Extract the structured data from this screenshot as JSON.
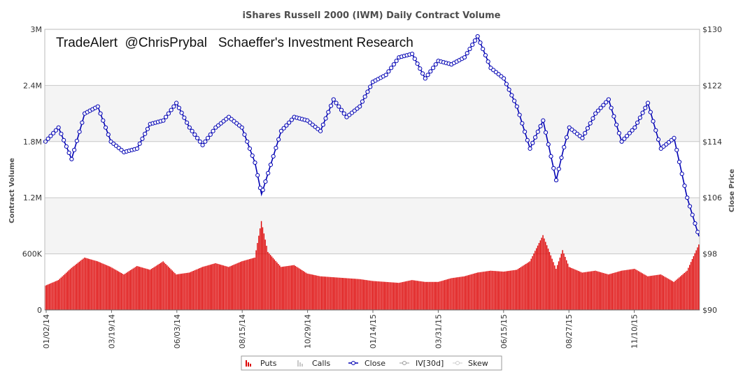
{
  "chart_data": {
    "type": "bar+line",
    "title": "iShares Russell 2000 (IWM) Daily Contract Volume",
    "watermark": "TradeAlert  @ChrisPrybal   Schaeffer's Investment Research",
    "ylabel_left": "Contract Volume",
    "ylabel_right": "Close Price",
    "ylim_left": [
      0,
      3000000
    ],
    "ylim_right": [
      90,
      130
    ],
    "y_ticks_left": [
      "0",
      "600K",
      "1.2M",
      "1.8M",
      "2.4M",
      "3M"
    ],
    "y_ticks_right": [
      "$90",
      "$98",
      "$106",
      "$114",
      "$122",
      "$130"
    ],
    "x_ticks": [
      "01/02/14",
      "03/19/14",
      "06/03/14",
      "08/15/14",
      "10/29/14",
      "01/14/15",
      "03/31/15",
      "06/15/15",
      "08/27/15",
      "11/10/15"
    ],
    "legend": [
      "Puts",
      "Calls",
      "Close",
      "IV[30d]",
      "Skew"
    ],
    "grid": true,
    "colors": {
      "puts": "#dd0000",
      "calls": "#c8c8c8",
      "close": "#0000b3",
      "band": "#f4f4f4",
      "grid": "#c8c8c8"
    },
    "series": [
      {
        "name": "Close",
        "x_index": [
          0,
          10,
          20,
          30,
          40,
          50,
          60,
          70,
          80,
          90,
          100,
          110,
          120,
          130,
          140,
          150,
          160,
          165,
          170,
          180,
          190,
          200,
          210,
          220,
          230,
          240,
          250,
          260,
          270,
          280,
          290,
          300,
          310,
          320,
          330,
          340,
          350,
          360,
          370,
          380,
          390,
          395,
          400,
          410,
          420,
          430,
          440,
          450,
          460,
          470,
          480,
          490,
          499
        ],
        "values": [
          114.0,
          116.0,
          111.5,
          118.0,
          119.0,
          114.0,
          112.5,
          113.0,
          116.5,
          117.0,
          119.5,
          116.0,
          113.5,
          116.0,
          117.5,
          116.0,
          111.0,
          106.5,
          109.5,
          115.5,
          117.5,
          117.0,
          115.5,
          120.0,
          117.5,
          119.0,
          122.5,
          123.5,
          126.0,
          126.5,
          123.0,
          125.5,
          125.0,
          126.0,
          129.0,
          124.5,
          123.0,
          119.0,
          113.0,
          117.0,
          108.5,
          112.5,
          116.0,
          114.5,
          118.0,
          120.0,
          114.0,
          116.0,
          119.5,
          113.0,
          114.5,
          106.0,
          100.5
        ]
      },
      {
        "name": "Puts",
        "x_index": [
          0,
          10,
          20,
          30,
          40,
          50,
          60,
          70,
          80,
          90,
          100,
          110,
          120,
          130,
          140,
          150,
          160,
          165,
          170,
          180,
          190,
          200,
          210,
          220,
          230,
          240,
          250,
          260,
          270,
          280,
          290,
          300,
          310,
          320,
          330,
          340,
          350,
          360,
          370,
          380,
          390,
          395,
          400,
          410,
          420,
          430,
          440,
          450,
          460,
          470,
          480,
          490,
          499
        ],
        "values": [
          260000,
          320000,
          450000,
          560000,
          520000,
          460000,
          380000,
          470000,
          430000,
          520000,
          380000,
          400000,
          460000,
          500000,
          460000,
          520000,
          560000,
          950000,
          620000,
          460000,
          480000,
          390000,
          360000,
          350000,
          340000,
          330000,
          310000,
          300000,
          290000,
          320000,
          300000,
          300000,
          340000,
          360000,
          400000,
          420000,
          410000,
          430000,
          520000,
          800000,
          440000,
          640000,
          460000,
          400000,
          420000,
          380000,
          420000,
          440000,
          360000,
          380000,
          300000,
          420000,
          700000
        ]
      }
    ]
  }
}
